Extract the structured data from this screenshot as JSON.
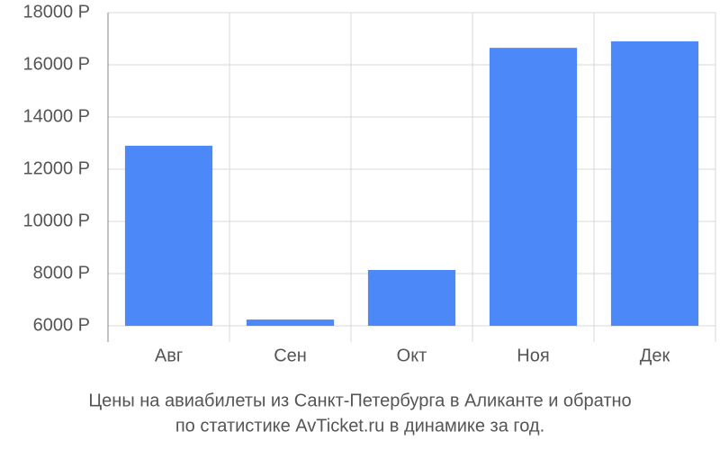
{
  "chart_data": {
    "type": "bar",
    "title": [
      "Цены на авиабилеты из Санкт-Петербурга в Аликанте и обратно",
      "по статистике AvTicket.ru в динамике за год."
    ],
    "categories": [
      "Авг",
      "Сен",
      "Окт",
      "Ноя",
      "Дек"
    ],
    "values": [
      12900,
      6240,
      8140,
      16650,
      16900
    ],
    "color": "#4d88f9",
    "ylim": [
      5380,
      18000
    ],
    "yticks": [
      {
        "value": 6000,
        "label": "6000 Р"
      },
      {
        "value": 8000,
        "label": "8000 Р"
      },
      {
        "value": 10000,
        "label": "10000 Р"
      },
      {
        "value": 12000,
        "label": "12000 Р"
      },
      {
        "value": 14000,
        "label": "14000 Р"
      },
      {
        "value": 16000,
        "label": "16000 Р"
      },
      {
        "value": 18000,
        "label": "18000 Р"
      }
    ],
    "grid": true
  }
}
